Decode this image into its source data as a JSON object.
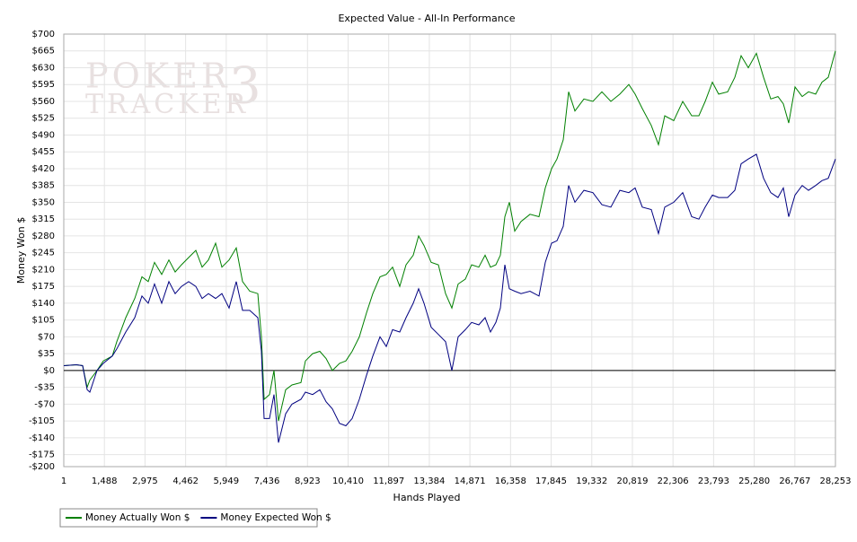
{
  "chart_data": {
    "type": "line",
    "title": "Expected Value - All-In Performance",
    "x_label": "Hands Played",
    "y_label": "Money Won $",
    "watermark": [
      "POKER",
      "TRACKER",
      "3"
    ],
    "grid": true,
    "legend": "bottom-left",
    "xlim": [
      1,
      28253
    ],
    "ylim": [
      -200,
      700
    ],
    "xticks": [
      1,
      {
        "value": 1488,
        "label": "1,488"
      },
      {
        "value": 2975,
        "label": "2,975"
      },
      {
        "value": 4462,
        "label": "4,462"
      },
      {
        "value": 5949,
        "label": "5,949"
      },
      {
        "value": 7436,
        "label": "7,436"
      },
      {
        "value": 8923,
        "label": "8,923"
      },
      {
        "value": 10410,
        "label": "10,410"
      },
      {
        "value": 11897,
        "label": "11,897"
      },
      {
        "value": 13384,
        "label": "13,384"
      },
      {
        "value": 14871,
        "label": "14,871"
      },
      {
        "value": 16358,
        "label": "16,358"
      },
      {
        "value": 17845,
        "label": "17,845"
      },
      {
        "value": 19332,
        "label": "19,332"
      },
      {
        "value": 20819,
        "label": "20,819"
      },
      {
        "value": 22306,
        "label": "22,306"
      },
      {
        "value": 23793,
        "label": "23,793"
      },
      {
        "value": 25280,
        "label": "25,280"
      },
      {
        "value": 26767,
        "label": "26,767"
      },
      {
        "value": 28253,
        "label": "28,253"
      }
    ],
    "yticks": [
      {
        "value": -200,
        "label": "-$200"
      },
      {
        "value": -175,
        "label": "-$175"
      },
      {
        "value": -140,
        "label": "-$140"
      },
      {
        "value": -105,
        "label": "-$105"
      },
      {
        "value": -70,
        "label": "-$70"
      },
      {
        "value": -35,
        "label": "-$35"
      },
      {
        "value": 0,
        "label": "$0"
      },
      {
        "value": 35,
        "label": "$35"
      },
      {
        "value": 70,
        "label": "$70"
      },
      {
        "value": 105,
        "label": "$105"
      },
      {
        "value": 140,
        "label": "$140"
      },
      {
        "value": 175,
        "label": "$175"
      },
      {
        "value": 210,
        "label": "$210"
      },
      {
        "value": 245,
        "label": "$245"
      },
      {
        "value": 280,
        "label": "$280"
      },
      {
        "value": 315,
        "label": "$315"
      },
      {
        "value": 350,
        "label": "$350"
      },
      {
        "value": 385,
        "label": "$385"
      },
      {
        "value": 420,
        "label": "$420"
      },
      {
        "value": 455,
        "label": "$455"
      },
      {
        "value": 490,
        "label": "$490"
      },
      {
        "value": 525,
        "label": "$525"
      },
      {
        "value": 560,
        "label": "$560"
      },
      {
        "value": 595,
        "label": "$595"
      },
      {
        "value": 630,
        "label": "$630"
      },
      {
        "value": 665,
        "label": "$665"
      },
      {
        "value": 700,
        "label": "$700"
      }
    ],
    "x": [
      1,
      460,
      691,
      855,
      954,
      1217,
      1447,
      1776,
      1941,
      2269,
      2598,
      2861,
      3092,
      3322,
      3585,
      3848,
      4078,
      4309,
      4572,
      4835,
      5065,
      5295,
      5558,
      5789,
      6052,
      6315,
      6545,
      6808,
      7104,
      7236,
      7334,
      7532,
      7696,
      7861,
      8124,
      8354,
      8683,
      8847,
      9111,
      9374,
      9604,
      9834,
      10097,
      10327,
      10558,
      10821,
      11084,
      11314,
      11577,
      11808,
      12038,
      12301,
      12531,
      12794,
      12992,
      13189,
      13452,
      13715,
      13978,
      14208,
      14439,
      14702,
      14932,
      15195,
      15425,
      15623,
      15820,
      15985,
      16149,
      16313,
      16511,
      16741,
      17070,
      17399,
      17629,
      17859,
      18057,
      18287,
      18484,
      18714,
      19043,
      19372,
      19701,
      20030,
      20359,
      20688,
      20918,
      21181,
      21510,
      21773,
      22003,
      22332,
      22661,
      22990,
      23253,
      23483,
      23747,
      23977,
      24306,
      24569,
      24799,
      25062,
      25358,
      25621,
      25884,
      26148,
      26345,
      26542,
      26772,
      27036,
      27266,
      27529,
      27759,
      27989,
      28253
    ],
    "series": [
      {
        "name": "Money Actually Won $",
        "color": "#008000",
        "values": [
          10,
          12,
          10,
          -35,
          -20,
          0,
          20,
          30,
          60,
          110,
          150,
          195,
          185,
          225,
          200,
          230,
          205,
          220,
          235,
          250,
          215,
          230,
          265,
          215,
          230,
          255,
          185,
          165,
          160,
          70,
          -60,
          -50,
          0,
          -105,
          -40,
          -30,
          -25,
          20,
          35,
          40,
          25,
          0,
          15,
          20,
          40,
          70,
          120,
          160,
          195,
          200,
          215,
          175,
          220,
          240,
          280,
          260,
          225,
          220,
          160,
          130,
          180,
          190,
          220,
          215,
          240,
          215,
          220,
          240,
          320,
          350,
          290,
          310,
          325,
          320,
          380,
          420,
          440,
          480,
          580,
          540,
          565,
          560,
          580,
          560,
          575,
          595,
          575,
          545,
          510,
          470,
          530,
          520,
          560,
          530,
          530,
          560,
          600,
          575,
          580,
          610,
          655,
          630,
          660,
          610,
          565,
          570,
          555,
          515,
          590,
          570,
          580,
          575,
          600,
          610,
          665
        ]
      },
      {
        "name": "Money Expected Won $",
        "color": "#000080",
        "values": [
          10,
          12,
          10,
          -40,
          -45,
          0,
          15,
          30,
          45,
          80,
          110,
          155,
          140,
          180,
          140,
          185,
          160,
          175,
          185,
          175,
          150,
          160,
          150,
          160,
          130,
          185,
          125,
          125,
          110,
          40,
          -100,
          -100,
          -50,
          -150,
          -90,
          -70,
          -60,
          -45,
          -50,
          -40,
          -65,
          -80,
          -110,
          -115,
          -100,
          -60,
          -10,
          30,
          70,
          50,
          85,
          80,
          110,
          140,
          170,
          140,
          90,
          75,
          60,
          0,
          70,
          85,
          100,
          95,
          110,
          80,
          100,
          130,
          220,
          170,
          165,
          160,
          165,
          155,
          225,
          265,
          270,
          300,
          385,
          350,
          375,
          370,
          345,
          340,
          375,
          370,
          380,
          340,
          335,
          285,
          340,
          350,
          370,
          320,
          315,
          340,
          365,
          360,
          360,
          375,
          430,
          440,
          450,
          400,
          370,
          360,
          380,
          320,
          365,
          385,
          375,
          385,
          395,
          400,
          440
        ]
      }
    ]
  }
}
